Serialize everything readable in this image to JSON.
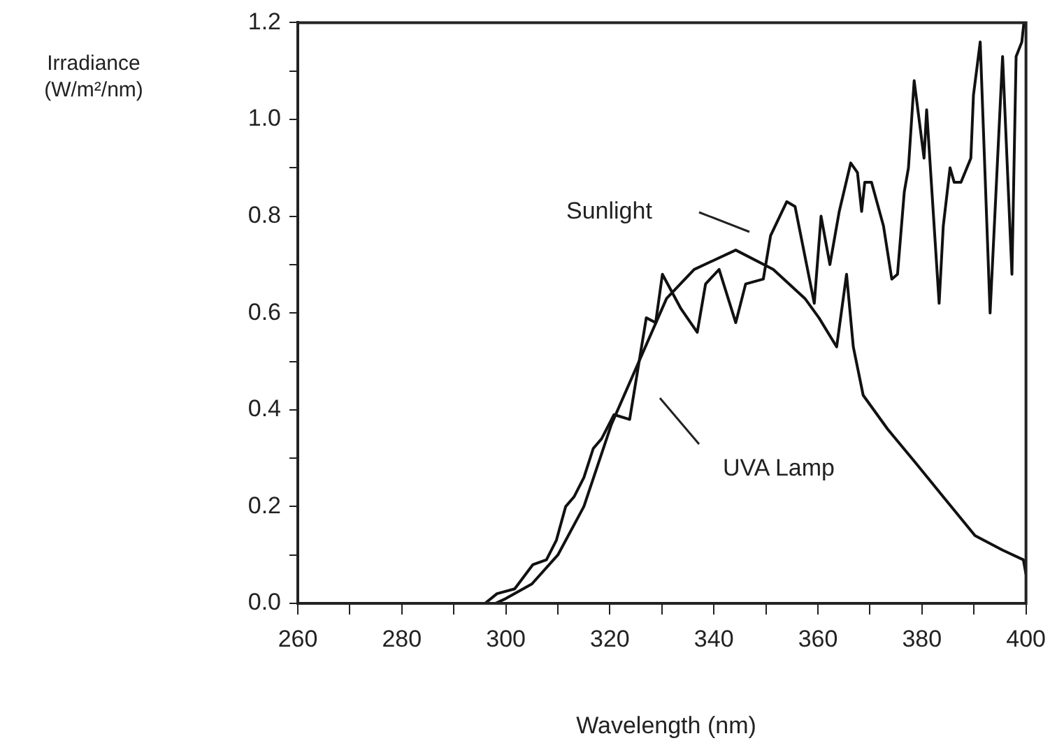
{
  "chart_data": {
    "type": "line",
    "xlabel": "Wavelength (nm)",
    "ylabel": "Irradiance (W/m²/nm)",
    "xlim": [
      260,
      400
    ],
    "ylim": [
      0,
      1.2
    ],
    "xticks": [
      260,
      {
        "value": 270,
        "label": null
      },
      280,
      {
        "value": 290,
        "label": null
      },
      300,
      {
        "value": 310,
        "label": null
      },
      320,
      {
        "value": 330,
        "label": null
      },
      340,
      {
        "value": 350,
        "label": null
      },
      360,
      {
        "value": 370,
        "label": null
      },
      380,
      {
        "value": 390,
        "label": null
      },
      400
    ],
    "yticks": [
      {
        "value": 0,
        "label": "0.0"
      },
      {
        "value": 0.1,
        "label": null
      },
      0.2,
      {
        "value": 0.3,
        "label": null
      },
      0.4,
      {
        "value": 0.5,
        "label": null
      },
      0.6,
      {
        "value": 0.7,
        "label": null
      },
      0.8,
      {
        "value": 0.9,
        "label": null
      },
      {
        "value": 1,
        "label": "1.0"
      },
      {
        "value": 1.1,
        "label": null
      },
      1.2
    ],
    "grid": false,
    "legend": false,
    "marker": "none",
    "line_style": "solid",
    "series": [
      {
        "color": "#111111",
        "x": [
          260,
          296,
          298.3,
          301.7,
          305.2,
          307.8,
          309.7,
          311.5,
          313.1,
          315,
          316.8,
          318.4,
          320.8,
          323.8,
          327,
          328.8,
          330.1,
          333.6,
          336.8,
          338.4,
          341,
          344.2,
          346.1,
          349.5,
          350.9,
          354,
          355.6,
          359.3,
          360.6,
          362.3,
          364.1,
          366.3,
          367.6,
          368.4,
          369,
          370.3,
          372.6,
          374.2,
          375.3,
          376.6,
          377.4,
          378.5,
          380.4,
          380.9,
          383.3,
          384.1,
          385.4,
          386.2,
          387.5,
          389.4,
          389.9,
          391.2,
          393.1,
          395.5,
          397.3,
          398.1,
          399.2,
          399.6
        ],
        "values": [
          0,
          0,
          0.02,
          0.03,
          0.08,
          0.09,
          0.13,
          0.2,
          0.22,
          0.26,
          0.32,
          0.34,
          0.39,
          0.38,
          0.59,
          0.58,
          0.68,
          0.61,
          0.56,
          0.66,
          0.69,
          0.58,
          0.66,
          0.67,
          0.76,
          0.83,
          0.82,
          0.62,
          0.8,
          0.7,
          0.81,
          0.91,
          0.89,
          0.81,
          0.87,
          0.87,
          0.78,
          0.67,
          0.68,
          0.85,
          0.9,
          1.08,
          0.92,
          1.02,
          0.62,
          0.78,
          0.9,
          0.87,
          0.87,
          0.92,
          1.05,
          1.16,
          0.6,
          1.13,
          0.68,
          1.13,
          1.16,
          1.2
        ]
      },
      {
        "color": "#111111",
        "x": [
          260,
          298,
          300,
          305,
          310,
          315,
          320.3,
          325.6,
          330.9,
          336.2,
          344.2,
          351.4,
          357.5,
          360.2,
          363.6,
          365.5,
          366.8,
          368.7,
          373.4,
          378.8,
          384.1,
          390.2,
          395.5,
          399.5,
          400
        ],
        "values": [
          0,
          0,
          0.01,
          0.04,
          0.1,
          0.2,
          0.37,
          0.5,
          0.63,
          0.69,
          0.73,
          0.69,
          0.63,
          0.59,
          0.53,
          0.68,
          0.53,
          0.43,
          0.36,
          0.29,
          0.22,
          0.14,
          0.11,
          0.09,
          0.06
        ]
      }
    ],
    "annotations": [
      "Sunlight",
      "UVA Lamp"
    ]
  }
}
